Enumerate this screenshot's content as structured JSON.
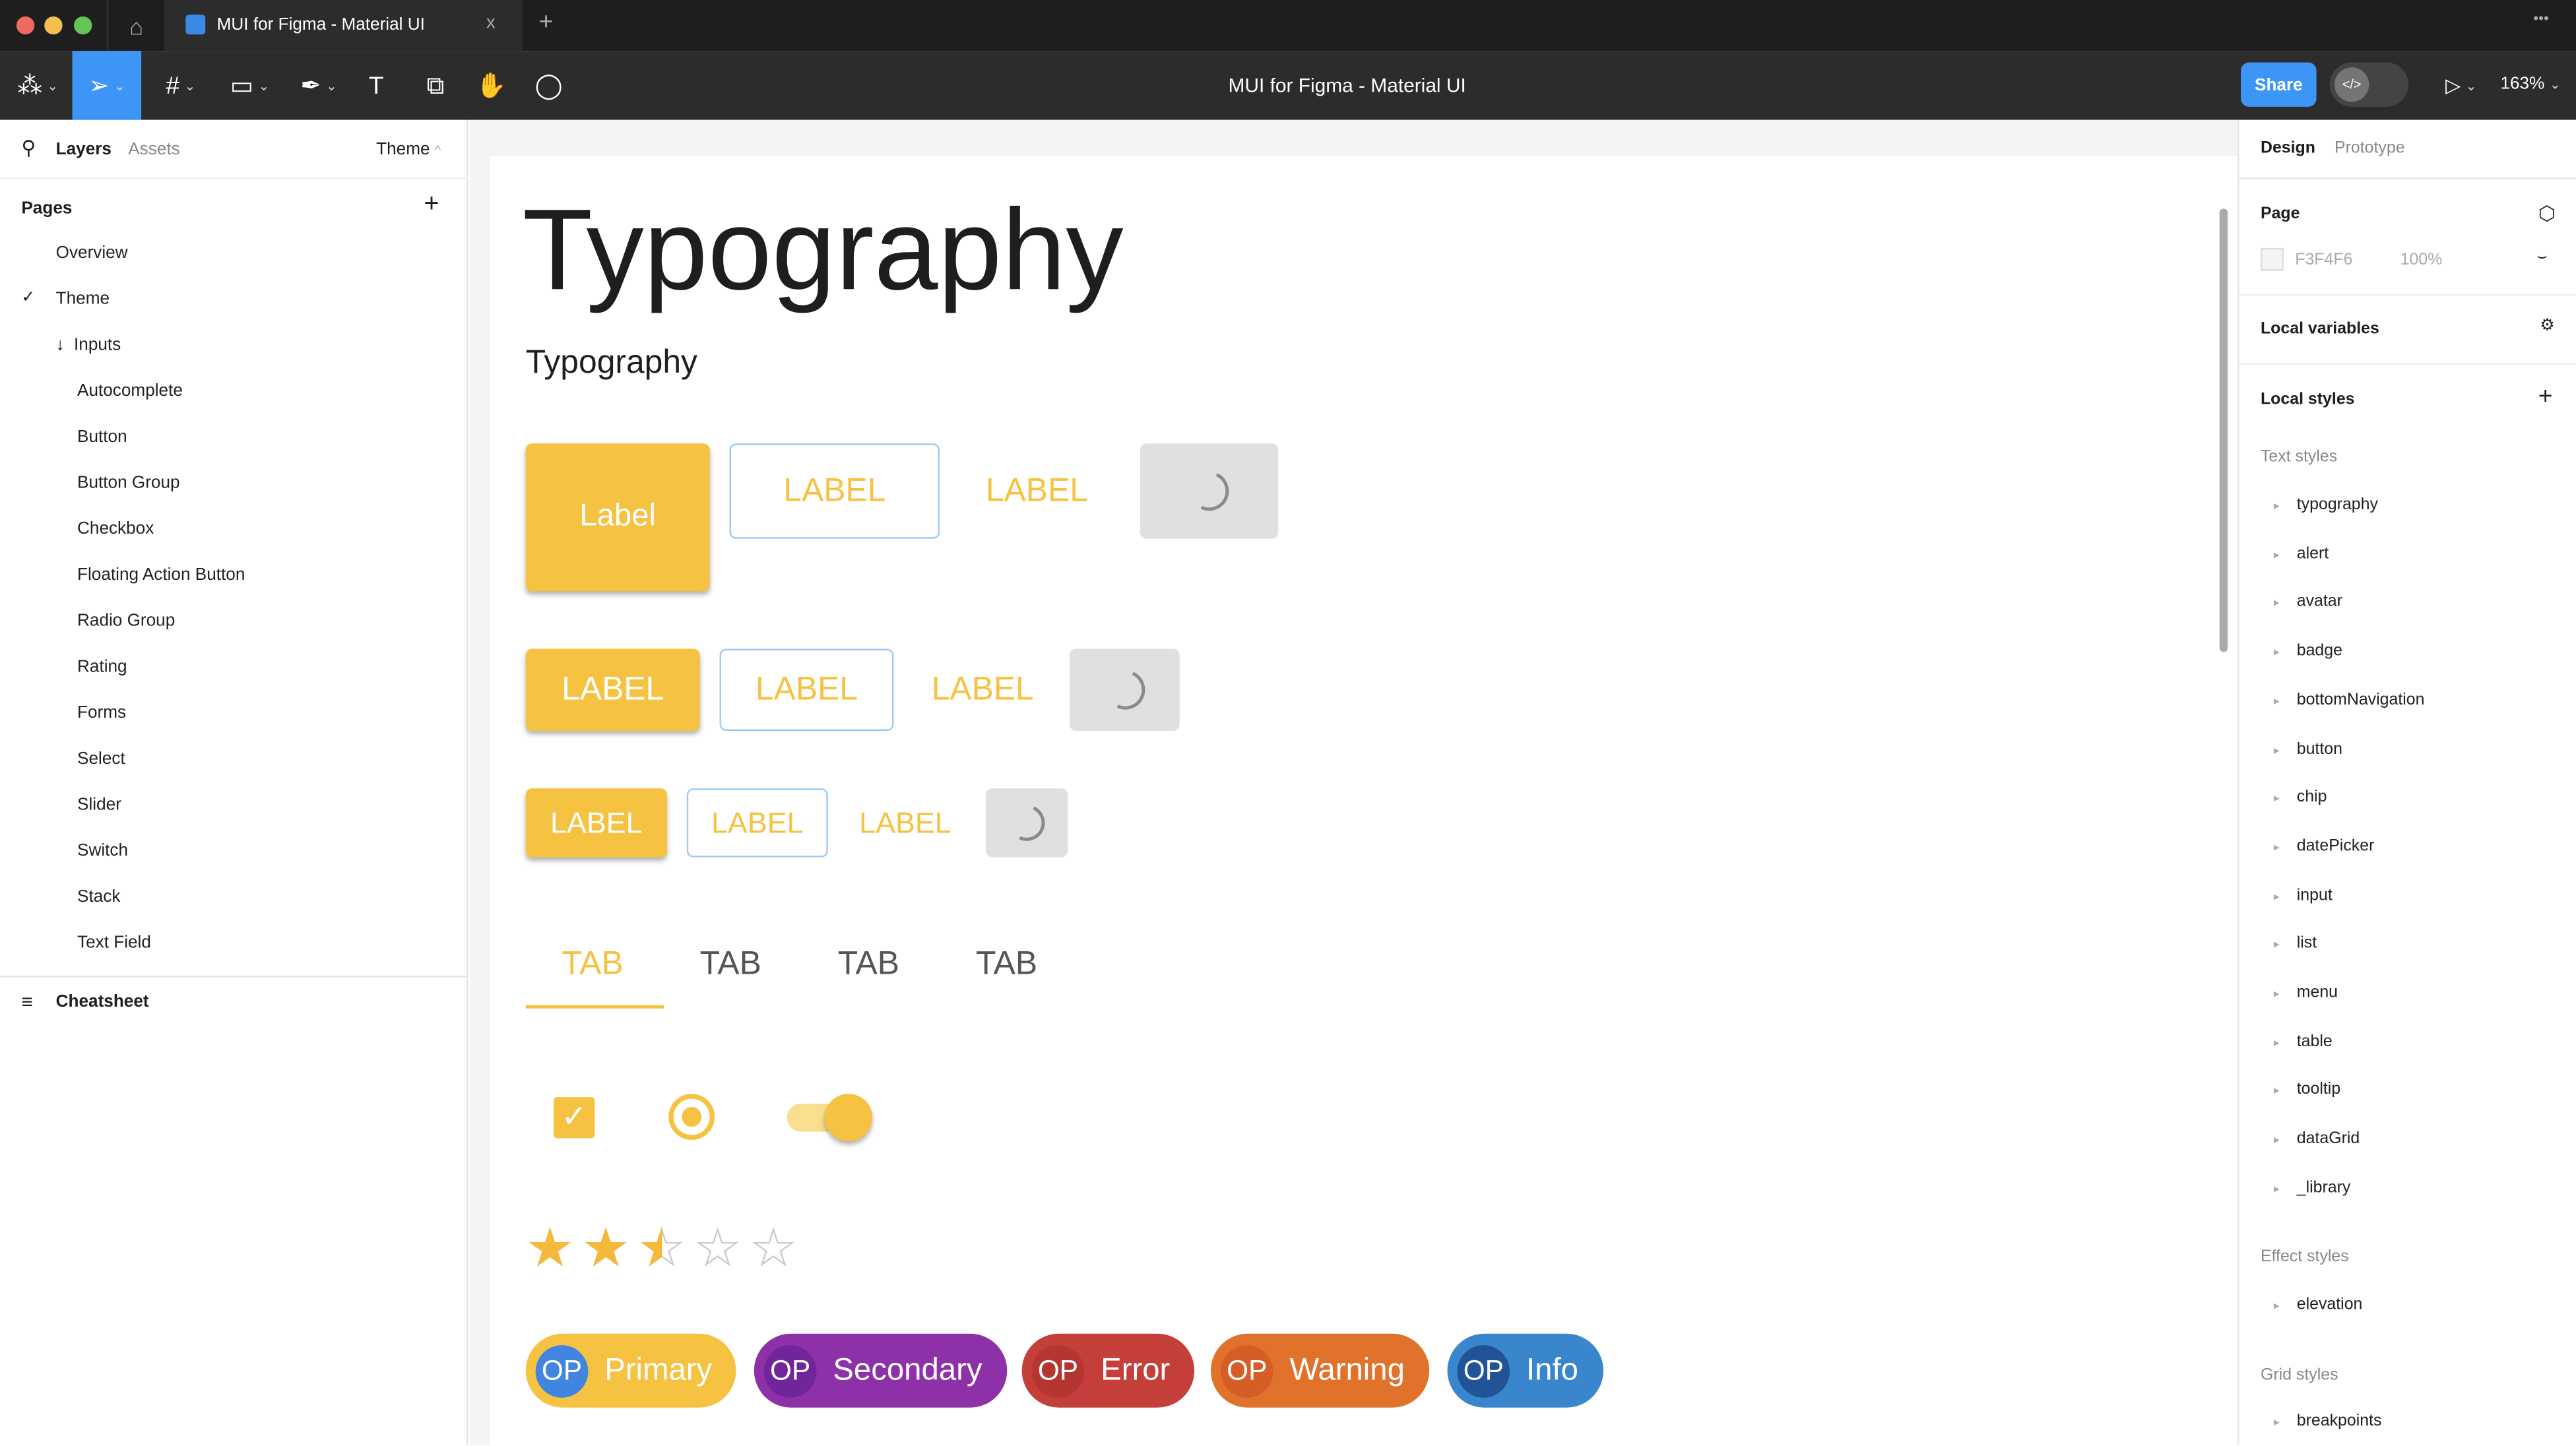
{
  "window": {
    "tab_title": "MUI for Figma - Material UI",
    "new_tab": "+",
    "close": "x",
    "more": "•••"
  },
  "toolbar": {
    "file_title": "MUI for Figma - Material UI",
    "share": "Share",
    "dev_mode": "</>",
    "zoom": "163%"
  },
  "left_panel": {
    "tabs": [
      "Layers",
      "Assets"
    ],
    "page_selector": "Theme",
    "pages_heading": "Pages",
    "pages": [
      "Overview",
      "Theme",
      "Inputs",
      "Autocomplete",
      "Button",
      "Button Group",
      "Checkbox",
      "Floating Action Button",
      "Radio Group",
      "Rating",
      "Forms",
      "Select",
      "Slider",
      "Switch",
      "Stack",
      "Text Field"
    ],
    "current_page": "Theme",
    "layer": "Cheatsheet"
  },
  "canvas": {
    "title": "Typography",
    "subtitle": "Typography",
    "buttons": {
      "large_filled": "Label",
      "label": "LABEL"
    },
    "tabs": [
      "TAB",
      "TAB",
      "TAB",
      "TAB"
    ],
    "active_tab": 0,
    "checkbox_checked": true,
    "radio_selected": true,
    "switch_on": true,
    "rating": {
      "value": 2.5,
      "max": 5
    },
    "chips": [
      {
        "avatar": "OP",
        "label": "Primary",
        "color": "#f5c242",
        "avatar_color": "#4285e0"
      },
      {
        "avatar": "OP",
        "label": "Secondary",
        "color": "#8e30a8",
        "avatar_color": "#70269a"
      },
      {
        "avatar": "OP",
        "label": "Error",
        "color": "#c43e3a",
        "avatar_color": "#b53530"
      },
      {
        "avatar": "OP",
        "label": "Warning",
        "color": "#e0722c",
        "avatar_color": "#d65e26"
      },
      {
        "avatar": "OP",
        "label": "Info",
        "color": "#3a86cc",
        "avatar_color": "#215497"
      }
    ],
    "accent": "#f5c242"
  },
  "right_panel": {
    "tabs": [
      "Design",
      "Prototype"
    ],
    "page_label": "Page",
    "page_color": "F3F4F6",
    "page_opacity": "100%",
    "local_variables": "Local variables",
    "local_styles": "Local styles",
    "text_styles_heading": "Text styles",
    "text_styles": [
      "typography",
      "alert",
      "avatar",
      "badge",
      "bottomNavigation",
      "button",
      "chip",
      "datePicker",
      "input",
      "list",
      "menu",
      "table",
      "tooltip",
      "dataGrid",
      "_library"
    ],
    "effect_styles_heading": "Effect styles",
    "effect_styles": [
      "elevation"
    ],
    "grid_styles_heading": "Grid styles",
    "grid_styles": [
      "breakpoints"
    ]
  }
}
